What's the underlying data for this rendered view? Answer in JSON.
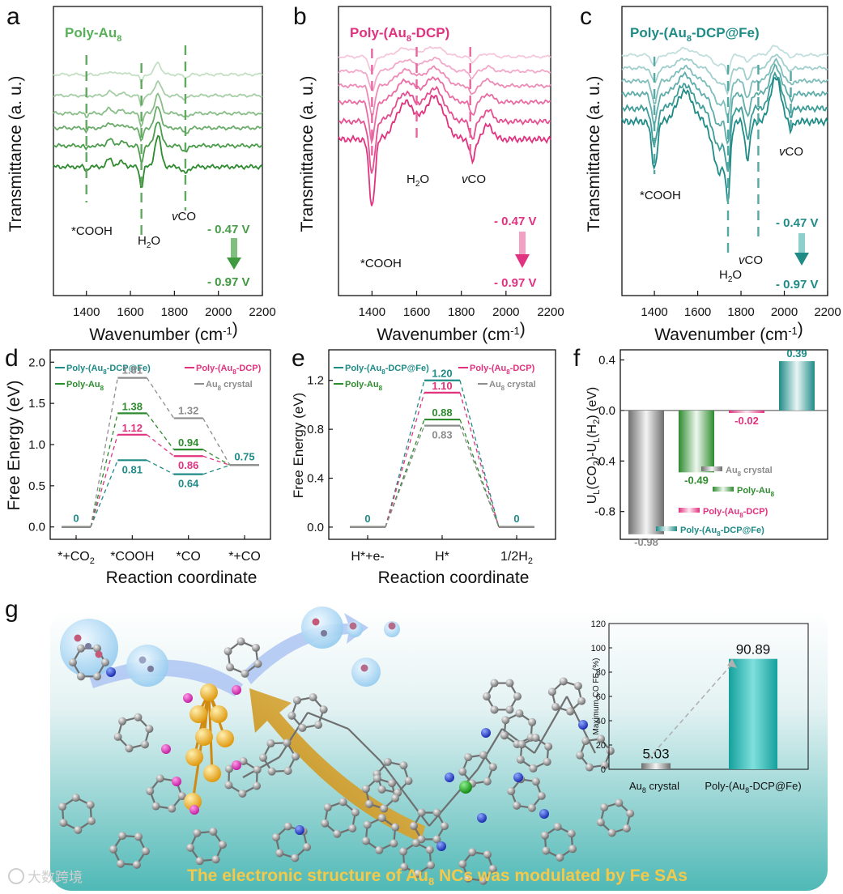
{
  "figure": {
    "panel_labels": [
      "a",
      "b",
      "c",
      "d",
      "e",
      "f",
      "g"
    ],
    "banner": "The electronic structure of Au8 NCs was modulated by  Fe SAs",
    "watermark": "大数跨境",
    "colors": {
      "poly_au8": "#2e8b2e",
      "poly_au8_dcp": "#e0327f",
      "poly_fe": "#1e8b87",
      "au8_crystal": "#8c8c8c"
    }
  },
  "chart_data": [
    {
      "panel": "a",
      "type": "line",
      "title": "Poly-Au8",
      "xlabel": "Wavenumber (cm-1)",
      "ylabel": "Transmittance (a. u.)",
      "xlim": [
        1250,
        2200
      ],
      "xticks": [
        "1400",
        "1600",
        "1800",
        "2000",
        "2200"
      ],
      "annotations": [
        "*COOH",
        "H2O",
        "vCO"
      ],
      "marker_positions": [
        1400,
        1650,
        1850
      ],
      "potential_top": "- 0.47 V",
      "potential_bottom": "- 0.97 V",
      "series_count": 6,
      "color": "#2e8b2e"
    },
    {
      "panel": "b",
      "type": "line",
      "title": "Poly-(Au8-DCP)",
      "xlabel": "Wavenumber (cm-1)",
      "ylabel": "Transmittance (a. u.)",
      "xlim": [
        1250,
        2200
      ],
      "xticks": [
        "1400",
        "1600",
        "1800",
        "2000",
        "2200"
      ],
      "annotations": [
        "*COOH",
        "H2O",
        "vCO"
      ],
      "marker_positions": [
        1400,
        1600,
        1840
      ],
      "potential_top": "- 0.47 V",
      "potential_bottom": "- 0.97 V",
      "series_count": 6,
      "color": "#e0327f"
    },
    {
      "panel": "c",
      "type": "line",
      "title": "Poly-(Au8-DCP@Fe)",
      "xlabel": "Wavenumber (cm-1)",
      "ylabel": "Transmittance (a. u.)",
      "xlim": [
        1250,
        2200
      ],
      "xticks": [
        "1400",
        "1600",
        "1800",
        "2000",
        "2200"
      ],
      "annotations": [
        "*COOH",
        "H2O",
        "vCO",
        "vCO"
      ],
      "marker_positions": [
        1400,
        1740,
        1880,
        2030
      ],
      "potential_top": "- 0.47 V",
      "potential_bottom": "- 0.97 V",
      "series_count": 6,
      "color": "#1e8b87"
    },
    {
      "panel": "d",
      "type": "line",
      "ylabel": "Free Energy (eV)",
      "xlabel": "Reaction coordinate",
      "ylim": [
        -0.15,
        2.15
      ],
      "yticks": [
        "0.0",
        "0.5",
        "1.0",
        "1.5",
        "2.0"
      ],
      "categories": [
        "*+CO2",
        "*COOH",
        "*CO",
        "*+CO"
      ],
      "series": [
        {
          "name": "Poly-(Au8-DCP@Fe)",
          "color": "#1e8b87",
          "values": [
            0,
            0.81,
            0.64,
            0.75
          ],
          "labels": [
            "0",
            "0.81",
            "0.64",
            "0.75"
          ]
        },
        {
          "name": "Poly-(Au8-DCP)",
          "color": "#e0327f",
          "values": [
            0,
            1.12,
            0.86,
            0.75
          ],
          "labels": [
            "",
            "1.12",
            "0.86",
            ""
          ]
        },
        {
          "name": "Poly-Au8",
          "color": "#2e8b2e",
          "values": [
            0,
            1.38,
            0.94,
            0.75
          ],
          "labels": [
            "",
            "1.38",
            "0.94",
            ""
          ]
        },
        {
          "name": "Au8 crystal",
          "color": "#8c8c8c",
          "values": [
            0,
            1.81,
            1.32,
            0.75
          ],
          "labels": [
            "",
            "1.81",
            "1.32",
            ""
          ]
        }
      ]
    },
    {
      "panel": "e",
      "type": "line",
      "ylabel": "Free Energy (eV)",
      "xlabel": "Reaction coordinate",
      "ylim": [
        -0.1,
        1.45
      ],
      "yticks": [
        "0.0",
        "0.4",
        "0.8",
        "1.2"
      ],
      "categories": [
        "H*+e-",
        "H*",
        "1/2H2"
      ],
      "series": [
        {
          "name": "Poly-(Au8-DCP@Fe)",
          "color": "#1e8b87",
          "values": [
            0,
            1.2,
            0
          ],
          "labels": [
            "0",
            "1.20",
            "0"
          ]
        },
        {
          "name": "Poly-(Au8-DCP)",
          "color": "#e0327f",
          "values": [
            0,
            1.1,
            0
          ],
          "labels": [
            "",
            "1.10",
            ""
          ]
        },
        {
          "name": "Poly-Au8",
          "color": "#2e8b2e",
          "values": [
            0,
            0.88,
            0
          ],
          "labels": [
            "",
            "0.88",
            ""
          ]
        },
        {
          "name": "Au8 crystal",
          "color": "#8c8c8c",
          "values": [
            0,
            0.83,
            0
          ],
          "labels": [
            "",
            "0.83",
            ""
          ]
        }
      ]
    },
    {
      "panel": "f",
      "type": "bar",
      "ylabel": "UL(CO2)-UL(H2) (eV)",
      "ylim": [
        -1.02,
        0.48
      ],
      "yticks": [
        "0.4",
        "0.0",
        "-0.4",
        "-0.8"
      ],
      "categories": [
        "Au8 crystal",
        "Poly-Au8",
        "Poly-(Au8-DCP)",
        "Poly-(Au8-DCP@Fe)"
      ],
      "values": [
        -0.98,
        -0.49,
        -0.02,
        0.39
      ],
      "value_labels": [
        "-0.98",
        "-0.49",
        "-0.02",
        "0.39"
      ],
      "colors": [
        "#8c8c8c",
        "#2e8b2e",
        "#e0327f",
        "#1e8b87"
      ]
    },
    {
      "panel": "g",
      "type": "bar",
      "ylabel": "Maximum CO FE (%)",
      "ylim": [
        0,
        120
      ],
      "yticks": [
        "0",
        "20",
        "40",
        "60",
        "80",
        "100",
        "120"
      ],
      "categories": [
        "Au8 crystal",
        "Poly-(Au8-DCP@Fe)"
      ],
      "values": [
        5.03,
        90.89
      ],
      "value_labels": [
        "5.03",
        "90.89"
      ],
      "colors": [
        "#9a9a9a",
        "#1aa5a2"
      ]
    }
  ]
}
